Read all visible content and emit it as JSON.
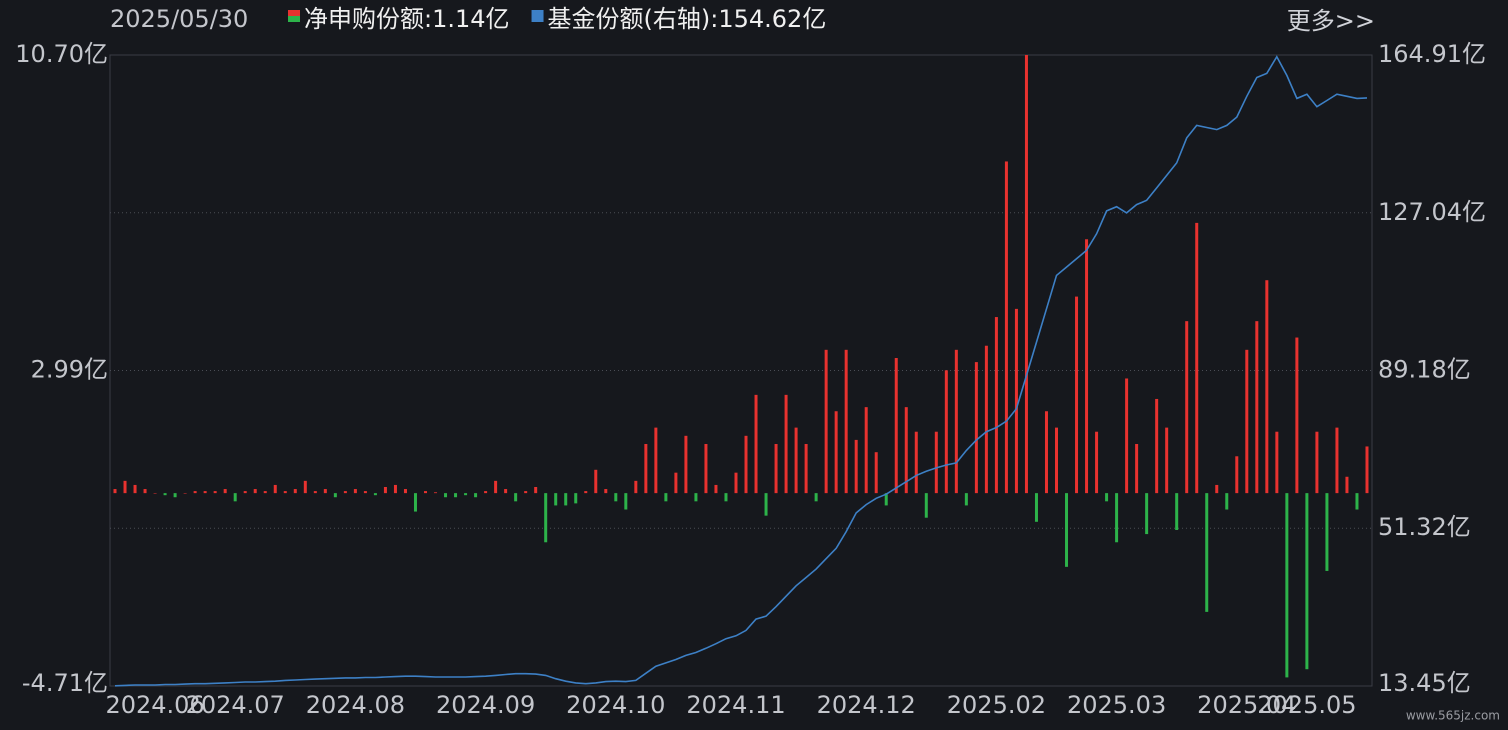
{
  "chart_data": {
    "type": "bar-line",
    "date": "2025/05/30",
    "more": "更多>>",
    "watermark": "www.565jz.com",
    "categories": [
      null,
      null,
      null,
      null,
      "2024.06",
      null,
      null,
      null,
      null,
      null,
      null,
      null,
      "2024.07",
      null,
      null,
      null,
      null,
      null,
      null,
      null,
      null,
      null,
      null,
      null,
      "2024.08",
      null,
      null,
      null,
      null,
      null,
      null,
      null,
      null,
      null,
      null,
      null,
      null,
      "2024.09",
      null,
      null,
      null,
      null,
      null,
      null,
      null,
      null,
      null,
      null,
      null,
      null,
      "2024.10",
      null,
      null,
      null,
      null,
      null,
      null,
      null,
      null,
      null,
      null,
      null,
      "2024.11",
      null,
      null,
      null,
      null,
      null,
      null,
      null,
      null,
      null,
      null,
      null,
      null,
      "2024.12",
      null,
      null,
      null,
      null,
      null,
      null,
      null,
      null,
      null,
      null,
      null,
      null,
      "2025.02",
      null,
      null,
      null,
      null,
      null,
      null,
      null,
      null,
      null,
      null,
      null,
      "2025.03",
      null,
      null,
      null,
      null,
      null,
      null,
      null,
      null,
      null,
      null,
      null,
      null,
      "2025.04",
      null,
      null,
      null,
      null,
      null,
      "2025.05",
      null,
      null,
      null,
      null,
      null,
      null
    ],
    "series": [
      {
        "name": "净申购份额:1.14亿",
        "color": "#e8322f",
        "negative_color": "#2db34a",
        "values": [
          0.1,
          0.3,
          0.2,
          0.1,
          0,
          -0.05,
          -0.1,
          0,
          0.05,
          0.05,
          0.05,
          0.1,
          -0.2,
          0.05,
          0.1,
          0.05,
          0.2,
          0.05,
          0.1,
          0.3,
          0.05,
          0.1,
          -0.1,
          0.05,
          0.1,
          0.05,
          -0.05,
          0.15,
          0.2,
          0.1,
          -0.45,
          0.05,
          0.02,
          -0.1,
          -0.1,
          -0.05,
          -0.1,
          0.05,
          0.3,
          0.1,
          -0.2,
          0.05,
          0.15,
          -1.2,
          -0.3,
          -0.3,
          -0.25,
          0.05,
          0.57,
          0.1,
          -0.2,
          -0.4,
          0.3,
          1.2,
          1.6,
          -0.2,
          0.5,
          1.4,
          -0.2,
          1.2,
          0.2,
          -0.2,
          0.5,
          1.4,
          2.4,
          -0.55,
          1.2,
          2.4,
          1.6,
          1.2,
          -0.2,
          3.5,
          2.0,
          3.5,
          1.3,
          2.1,
          1.0,
          -0.3,
          3.3,
          2.1,
          1.5,
          -0.6,
          1.5,
          3.0,
          3.5,
          -0.3,
          3.2,
          3.6,
          4.3,
          8.1,
          4.5,
          10.7,
          -0.7,
          2.0,
          1.6,
          -1.8,
          4.8,
          6.2,
          1.5,
          -0.2,
          -1.2,
          2.8,
          1.2,
          -1.0,
          2.3,
          1.6,
          -0.9,
          4.2,
          6.6,
          -2.9,
          0.2,
          -0.4,
          0.9,
          3.5,
          4.2,
          5.2,
          1.5,
          -4.5,
          3.8,
          -4.3,
          1.5,
          -1.9,
          1.6,
          0.4,
          -0.4,
          1.14
        ]
      },
      {
        "name": "基金份额(右轴):154.62亿",
        "color": "#3d80c6",
        "axis": "y2",
        "values": [
          13.5,
          13.6,
          13.7,
          13.7,
          13.7,
          13.8,
          13.8,
          13.9,
          14.0,
          14.0,
          14.1,
          14.2,
          14.3,
          14.4,
          14.4,
          14.5,
          14.6,
          14.8,
          14.9,
          15.0,
          15.1,
          15.2,
          15.3,
          15.4,
          15.4,
          15.5,
          15.5,
          15.6,
          15.7,
          15.8,
          15.8,
          15.7,
          15.6,
          15.6,
          15.6,
          15.6,
          15.7,
          15.8,
          16.0,
          16.2,
          16.4,
          16.4,
          16.3,
          16.0,
          15.2,
          14.6,
          14.2,
          14.0,
          14.2,
          14.5,
          14.6,
          14.5,
          14.8,
          16.5,
          18.2,
          19.0,
          19.8,
          20.8,
          21.5,
          22.5,
          23.6,
          24.8,
          25.5,
          26.8,
          29.5,
          30.2,
          32.5,
          35.0,
          37.5,
          39.5,
          41.5,
          44.0,
          46.5,
          50.5,
          55.0,
          57.0,
          58.5,
          59.5,
          61.0,
          62.5,
          64.0,
          65.0,
          65.8,
          66.5,
          67.0,
          70.0,
          72.5,
          74.5,
          75.5,
          77.0,
          80.0,
          88.0,
          96.0,
          104.0,
          112.0,
          114.0,
          116.0,
          118.0,
          122.0,
          127.5,
          128.5,
          127.0,
          129.0,
          130.0,
          133.0,
          136.0,
          139.0,
          145.0,
          148.0,
          147.5,
          147.0,
          148.0,
          150.0,
          155.0,
          159.5,
          160.5,
          164.5,
          160.0,
          154.5,
          155.5,
          152.5,
          154.0,
          155.5,
          155.0,
          154.5,
          154.62
        ]
      }
    ],
    "ylim": [
      -4.71,
      10.7
    ],
    "yticks": [
      {
        "value": -4.71,
        "label": "-4.71亿"
      },
      {
        "value": 2.99,
        "label": "2.99亿"
      },
      {
        "value": 10.7,
        "label": "10.70亿"
      }
    ],
    "y2lim": [
      13.45,
      164.91
    ],
    "y2ticks": [
      {
        "value": 13.45,
        "label": "13.45亿"
      },
      {
        "value": 51.32,
        "label": "51.32亿"
      },
      {
        "value": 89.18,
        "label": "89.18亿"
      },
      {
        "value": 127.04,
        "label": "127.04亿"
      },
      {
        "value": 164.91,
        "label": "164.91亿"
      }
    ],
    "grid": true
  }
}
